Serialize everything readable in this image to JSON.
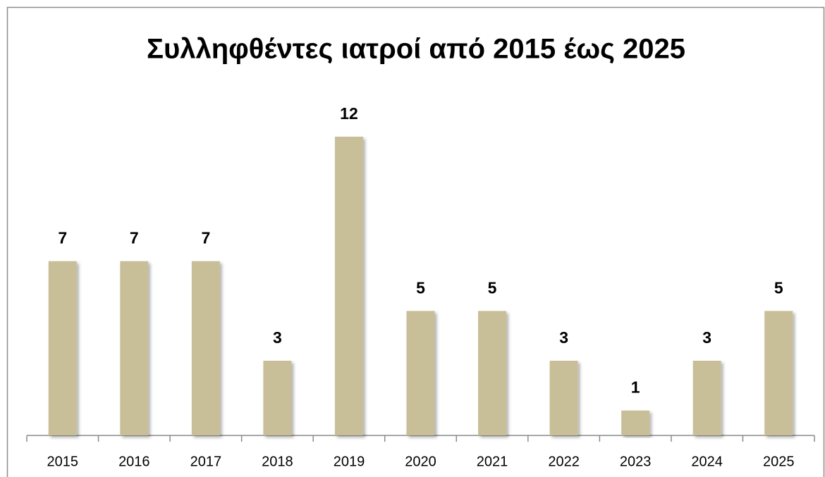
{
  "chart_data": {
    "type": "bar",
    "title": "Συλληφθέντες ιατροί από 2015 έως 2025",
    "categories": [
      "2015",
      "2016",
      "2017",
      "2018",
      "2019",
      "2020",
      "2021",
      "2022",
      "2023",
      "2024",
      "2025"
    ],
    "values": [
      7,
      7,
      7,
      3,
      12,
      5,
      5,
      3,
      1,
      3,
      5
    ],
    "color": "#c8bf99"
  }
}
